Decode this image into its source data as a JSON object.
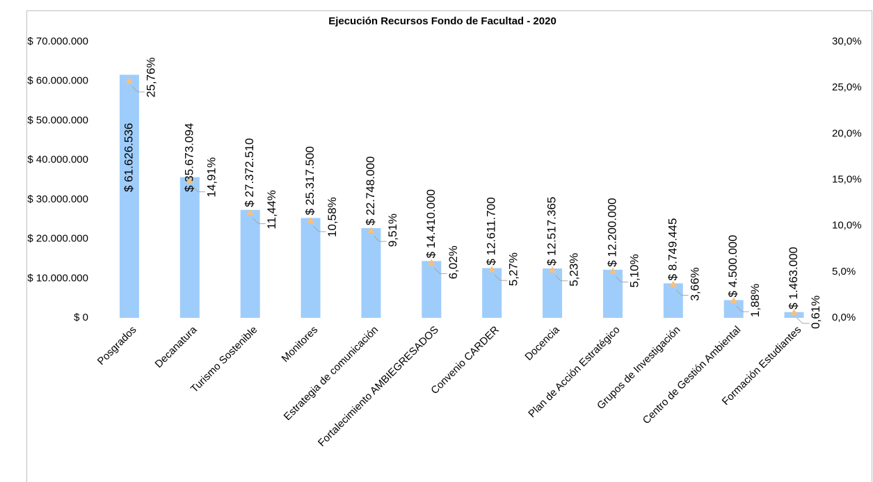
{
  "chart_data": {
    "type": "bar",
    "title": "Ejecución Recursos Fondo de Facultad - 2020",
    "categories": [
      "Posgrados",
      "Decanatura",
      "Turismo Sostenible",
      "Monitores",
      "Estrategia de comunicación",
      "Fortalecimiento AMBIEGRESADOS",
      "Convenio CARDER",
      "Docencia",
      "Plan de Acción Estratégico",
      "Grupos de Investigación",
      "Centro de Gestión Ambiental",
      "Formación Estudiantes"
    ],
    "series": [
      {
        "color": "#9fcdfb",
        "values": [
          61626536,
          35673094,
          27372510,
          25317500,
          22748000,
          14410000,
          12611700,
          12517365,
          12200000,
          8749445,
          4500000,
          1463000
        ],
        "value_labels": [
          "$ 61.626.536",
          "$ 35.673.094",
          "$ 27.372.510",
          "$ 25.317.500",
          "$ 22.748.000",
          "$ 14.410.000",
          "$ 12.611.700",
          "$ 12.517.365",
          "$ 12.200.000",
          "$ 8.749.445",
          "$ 4.500.000",
          "$ 1.463.000"
        ]
      },
      {
        "color": "#f7c07a",
        "axis": "y2",
        "marker": "triangle",
        "values": [
          25.76,
          14.91,
          11.44,
          10.58,
          9.51,
          6.02,
          5.27,
          5.23,
          5.1,
          3.66,
          1.88,
          0.61
        ],
        "value_labels": [
          "25,76%",
          "14,91%",
          "11,44%",
          "10,58%",
          "9,51%",
          "6,02%",
          "5,27%",
          "5,23%",
          "5,10%",
          "3,66%",
          "1,88%",
          "0,61%"
        ]
      }
    ],
    "ylim": [
      0,
      70000000
    ],
    "yticks": [
      {
        "value": 0,
        "label": "$ 0"
      },
      {
        "value": 10000000,
        "label": "$ 10.000.000"
      },
      {
        "value": 20000000,
        "label": "$ 20.000.000"
      },
      {
        "value": 30000000,
        "label": "$ 30.000.000"
      },
      {
        "value": 40000000,
        "label": "$ 40.000.000"
      },
      {
        "value": 50000000,
        "label": "$ 50.000.000"
      },
      {
        "value": 60000000,
        "label": "$ 60.000.000"
      },
      {
        "value": 70000000,
        "label": "$ 70.000.000"
      }
    ],
    "y2lim": [
      0,
      30
    ],
    "y2ticks": [
      {
        "value": 0,
        "label": "0,0%"
      },
      {
        "value": 5,
        "label": "5,0%"
      },
      {
        "value": 10,
        "label": "10,0%"
      },
      {
        "value": 15,
        "label": "15,0%"
      },
      {
        "value": 20,
        "label": "20,0%"
      },
      {
        "value": 25,
        "label": "25,0%"
      },
      {
        "value": 30,
        "label": "30,0%"
      }
    ],
    "grid": false
  }
}
